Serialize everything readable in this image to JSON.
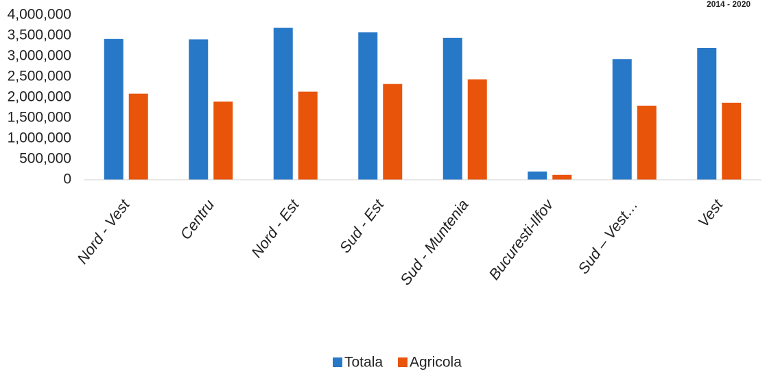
{
  "corner_label": "2014 - 2020",
  "colors": {
    "Totala": "#2878c8",
    "Agricola": "#e8540a",
    "axis": "#d0d0d0",
    "text": "#222222"
  },
  "chart_data": {
    "type": "bar",
    "categories": [
      "Nord - Vest",
      "Centru",
      "Nord - Est",
      "Sud - Est",
      "Sud - Muntenia",
      "Bucuresti-Ilfov",
      "Sud – Vest…",
      "Vest"
    ],
    "series": [
      {
        "name": "Totala",
        "values": [
          3420000,
          3410000,
          3690000,
          3580000,
          3450000,
          200000,
          2930000,
          3200000
        ]
      },
      {
        "name": "Agricola",
        "values": [
          2090000,
          1900000,
          2140000,
          2330000,
          2440000,
          120000,
          1800000,
          1870000
        ]
      }
    ],
    "yticks": [
      "0",
      "500,000",
      "1,000,000",
      "1,500,000",
      "2,000,000",
      "2,500,000",
      "3,000,000",
      "3,500,000",
      "4,000,000"
    ],
    "ylim": [
      0,
      4000000
    ],
    "legend": [
      "Totala",
      "Agricola"
    ],
    "legend_position": "bottom",
    "grid": false,
    "title": "",
    "xlabel": "",
    "ylabel": ""
  }
}
